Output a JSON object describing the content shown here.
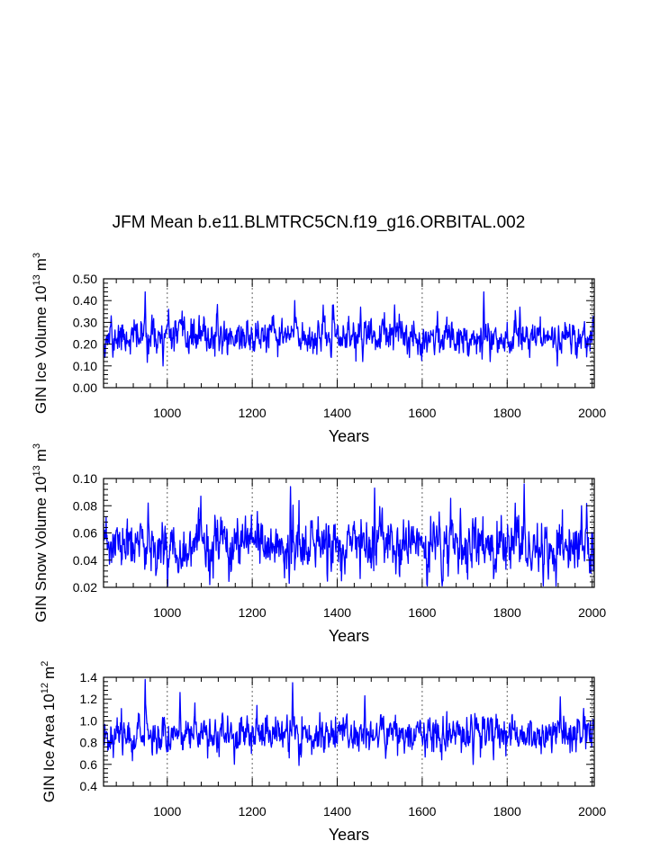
{
  "title": "JFM Mean b.e11.BLMTRC5CN.f19_g16.ORBITAL.002",
  "colors": {
    "series": "#0000ff",
    "axis": "#000000",
    "grid": "#666666"
  },
  "chart_data": [
    {
      "type": "line",
      "title": "JFM Mean b.e11.BLMTRC5CN.f19_g16.ORBITAL.002",
      "xlabel": "Years",
      "ylabel_parts": {
        "prefix": "GIN Ice Volume 10",
        "exp": "13",
        "unit": "m",
        "unit_exp": "3"
      },
      "xlim": [
        850,
        2005
      ],
      "ylim": [
        0.0,
        0.5
      ],
      "xticks": [
        1000,
        1200,
        1400,
        1600,
        1800,
        2000
      ],
      "xtick_labels": [
        "1000",
        "1200",
        "1400",
        "1600",
        "1800",
        "2000"
      ],
      "yticks": [
        0.0,
        0.1,
        0.2,
        0.3,
        0.4,
        0.5
      ],
      "ytick_labels": [
        "0.00",
        "0.10",
        "0.20",
        "0.30",
        "0.40",
        "0.50"
      ],
      "grid_x": true,
      "series": [
        {
          "name": "GIN Ice Volume",
          "seed": 11,
          "mean": 0.235,
          "amplitude": 0.045,
          "min": 0.095,
          "max": 0.44,
          "peaks": [
            [
              868,
              0.33
            ],
            [
              872,
              0.14
            ],
            [
              948,
              0.44
            ],
            [
              990,
              0.1
            ],
            [
              1003,
              0.36
            ],
            [
              1300,
              0.4
            ],
            [
              1455,
              0.37
            ],
            [
              1460,
              0.12
            ],
            [
              1535,
              0.38
            ],
            [
              1745,
              0.44
            ],
            [
              1760,
              0.12
            ],
            [
              1830,
              0.37
            ],
            [
              1918,
              0.1
            ]
          ]
        }
      ]
    },
    {
      "type": "line",
      "xlabel": "Years",
      "ylabel_parts": {
        "prefix": "GIN Snow Volume 10",
        "exp": "13",
        "unit": "m",
        "unit_exp": "3"
      },
      "xlim": [
        850,
        2005
      ],
      "ylim": [
        0.02,
        0.1
      ],
      "xticks": [
        1000,
        1200,
        1400,
        1600,
        1800,
        2000
      ],
      "xtick_labels": [
        "1000",
        "1200",
        "1400",
        "1600",
        "1800",
        "2000"
      ],
      "yticks": [
        0.02,
        0.04,
        0.06,
        0.08,
        0.1
      ],
      "ytick_labels": [
        "0.02",
        "0.04",
        "0.06",
        "0.08",
        "0.10"
      ],
      "grid_x": true,
      "series": [
        {
          "name": "GIN Snow Volume",
          "seed": 23,
          "mean": 0.05,
          "amplitude": 0.011,
          "min": 0.021,
          "max": 0.096,
          "peaks": [
            [
              955,
              0.082
            ],
            [
              1100,
              0.022
            ],
            [
              1290,
              0.094
            ],
            [
              1488,
              0.093
            ],
            [
              1690,
              0.078
            ],
            [
              1840,
              0.096
            ],
            [
              1915,
              0.021
            ],
            [
              1975,
              0.08
            ]
          ]
        }
      ]
    },
    {
      "type": "line",
      "xlabel": "Years",
      "ylabel_parts": {
        "prefix": "GIN Ice Area 10",
        "exp": "12",
        "unit": "m",
        "unit_exp": "2"
      },
      "xlim": [
        850,
        2005
      ],
      "ylim": [
        0.4,
        1.4
      ],
      "xticks": [
        1000,
        1200,
        1400,
        1600,
        1800,
        2000
      ],
      "xtick_labels": [
        "1000",
        "1200",
        "1400",
        "1600",
        "1800",
        "2000"
      ],
      "yticks": [
        0.4,
        0.6,
        0.8,
        1.0,
        1.2,
        1.4
      ],
      "ytick_labels": [
        "0.4",
        "0.6",
        "0.8",
        "1.0",
        "1.2",
        "1.4"
      ],
      "grid_x": true,
      "series": [
        {
          "name": "GIN Ice Area",
          "seed": 37,
          "mean": 0.88,
          "amplitude": 0.095,
          "min": 0.58,
          "max": 1.38,
          "peaks": [
            [
              948,
              1.38
            ],
            [
              1030,
              1.26
            ],
            [
              1295,
              1.35
            ],
            [
              1310,
              0.59
            ],
            [
              1465,
              1.23
            ],
            [
              1720,
              0.6
            ],
            [
              1925,
              1.22
            ]
          ]
        }
      ]
    }
  ]
}
